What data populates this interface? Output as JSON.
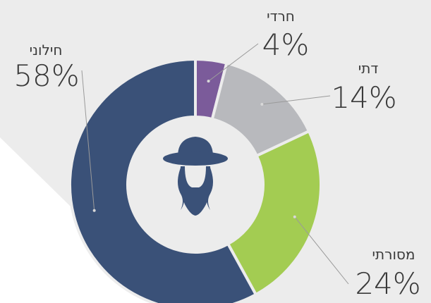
{
  "chart_data": {
    "type": "donut",
    "categories": [
      "חרדי",
      "דתי",
      "מסורתי",
      "חילוני"
    ],
    "values": [
      4,
      14,
      24,
      58
    ],
    "value_labels": [
      "4%",
      "14%",
      "24%",
      "58%"
    ],
    "colors": [
      "#7b5b9a",
      "#b8b9bd",
      "#a3cc52",
      "#3a5178"
    ]
  }
}
